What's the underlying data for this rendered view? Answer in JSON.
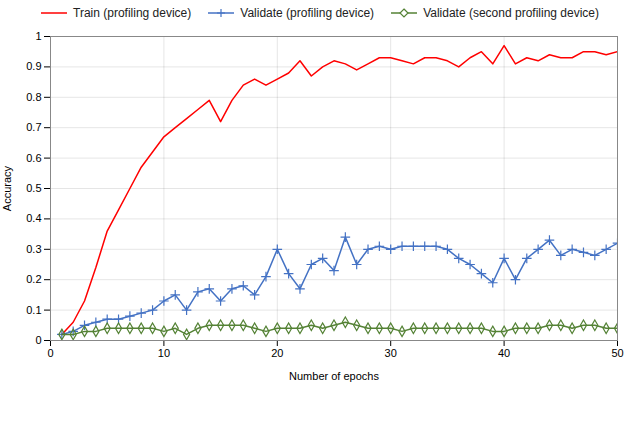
{
  "chart_data": {
    "type": "line",
    "x": [
      1,
      2,
      3,
      4,
      5,
      6,
      7,
      8,
      9,
      10,
      11,
      12,
      13,
      14,
      15,
      16,
      17,
      18,
      19,
      20,
      21,
      22,
      23,
      24,
      25,
      26,
      27,
      28,
      29,
      30,
      31,
      32,
      33,
      34,
      35,
      36,
      37,
      38,
      39,
      40,
      41,
      42,
      43,
      44,
      45,
      46,
      47,
      48,
      49,
      50
    ],
    "series": [
      {
        "name": "Train (profiling device)",
        "color": "#ff0000",
        "marker": "none",
        "values": [
          0.02,
          0.06,
          0.13,
          0.24,
          0.36,
          0.43,
          0.5,
          0.57,
          0.62,
          0.67,
          0.7,
          0.73,
          0.76,
          0.79,
          0.72,
          0.79,
          0.84,
          0.86,
          0.84,
          0.86,
          0.88,
          0.92,
          0.87,
          0.9,
          0.92,
          0.91,
          0.89,
          0.91,
          0.93,
          0.93,
          0.92,
          0.91,
          0.93,
          0.93,
          0.92,
          0.9,
          0.93,
          0.95,
          0.91,
          0.97,
          0.91,
          0.93,
          0.92,
          0.94,
          0.93,
          0.93,
          0.95,
          0.95,
          0.94,
          0.95
        ]
      },
      {
        "name": "Validate (profiling device)",
        "color": "#4472c4",
        "marker": "plus",
        "values": [
          0.02,
          0.03,
          0.05,
          0.06,
          0.07,
          0.07,
          0.08,
          0.09,
          0.1,
          0.13,
          0.15,
          0.1,
          0.16,
          0.17,
          0.13,
          0.17,
          0.18,
          0.15,
          0.21,
          0.3,
          0.22,
          0.17,
          0.25,
          0.27,
          0.23,
          0.34,
          0.25,
          0.3,
          0.31,
          0.3,
          0.31,
          0.31,
          0.31,
          0.31,
          0.3,
          0.27,
          0.25,
          0.22,
          0.19,
          0.27,
          0.2,
          0.27,
          0.3,
          0.33,
          0.28,
          0.3,
          0.29,
          0.28,
          0.3,
          0.32
        ]
      },
      {
        "name": "Validate (second profiling device)",
        "color": "#548235",
        "marker": "diamond",
        "values": [
          0.02,
          0.02,
          0.03,
          0.03,
          0.04,
          0.04,
          0.04,
          0.04,
          0.04,
          0.03,
          0.04,
          0.02,
          0.04,
          0.05,
          0.05,
          0.05,
          0.05,
          0.04,
          0.03,
          0.04,
          0.04,
          0.04,
          0.05,
          0.04,
          0.05,
          0.06,
          0.05,
          0.04,
          0.04,
          0.04,
          0.03,
          0.04,
          0.04,
          0.04,
          0.04,
          0.04,
          0.04,
          0.04,
          0.03,
          0.03,
          0.04,
          0.04,
          0.04,
          0.05,
          0.05,
          0.04,
          0.05,
          0.05,
          0.04,
          0.04
        ]
      }
    ],
    "xlabel": "Number of epochs",
    "ylabel": "Accuracy",
    "xlim": [
      0,
      50
    ],
    "ylim": [
      0,
      1
    ],
    "xticks": [
      0,
      10,
      20,
      30,
      40,
      50
    ],
    "yticks": [
      0,
      0.1,
      0.2,
      0.3,
      0.4,
      0.5,
      0.6,
      0.7,
      0.8,
      0.9,
      1
    ],
    "grid": true,
    "legend": "upper center"
  }
}
